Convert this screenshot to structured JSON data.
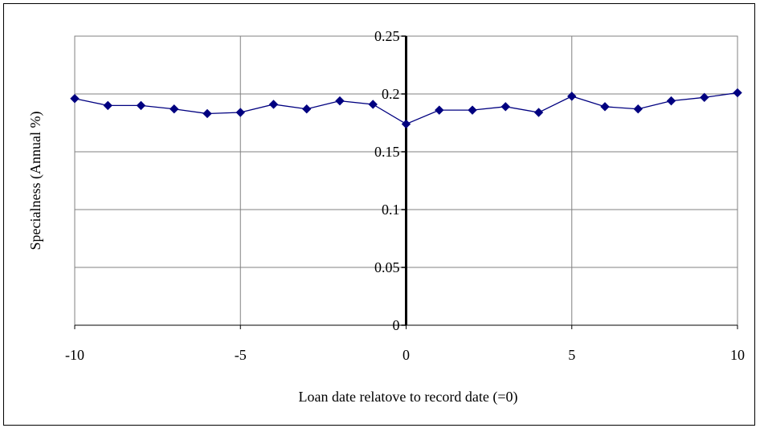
{
  "chart_data": {
    "type": "line",
    "title": "",
    "xlabel": "Loan date relatove to record date (=0)",
    "ylabel": "Specialness (Annual %)",
    "xlim": [
      -10,
      10
    ],
    "ylim": [
      0,
      0.25
    ],
    "x_ticks": [
      -10,
      -5,
      0,
      5,
      10
    ],
    "x_tick_labels": [
      "-10",
      "-5",
      "0",
      "5",
      "10"
    ],
    "y_ticks": [
      0,
      0.05,
      0.1,
      0.15,
      0.2,
      0.25
    ],
    "y_tick_labels": [
      "0",
      "0.05",
      "0.1",
      "0.15",
      "0.2",
      "0.25"
    ],
    "grid": true,
    "legend": "none",
    "colors": {
      "series": "#000080",
      "grid": "#808080",
      "axis": "#000000"
    },
    "x": [
      -10,
      -9,
      -8,
      -7,
      -6,
      -5,
      -4,
      -3,
      -2,
      -1,
      0,
      1,
      2,
      3,
      4,
      5,
      6,
      7,
      8,
      9,
      10
    ],
    "series": [
      {
        "values": [
          0.196,
          0.19,
          0.19,
          0.187,
          0.183,
          0.184,
          0.191,
          0.187,
          0.194,
          0.191,
          0.174,
          0.186,
          0.186,
          0.189,
          0.184,
          0.198,
          0.189,
          0.187,
          0.194,
          0.197,
          0.201
        ]
      }
    ]
  }
}
